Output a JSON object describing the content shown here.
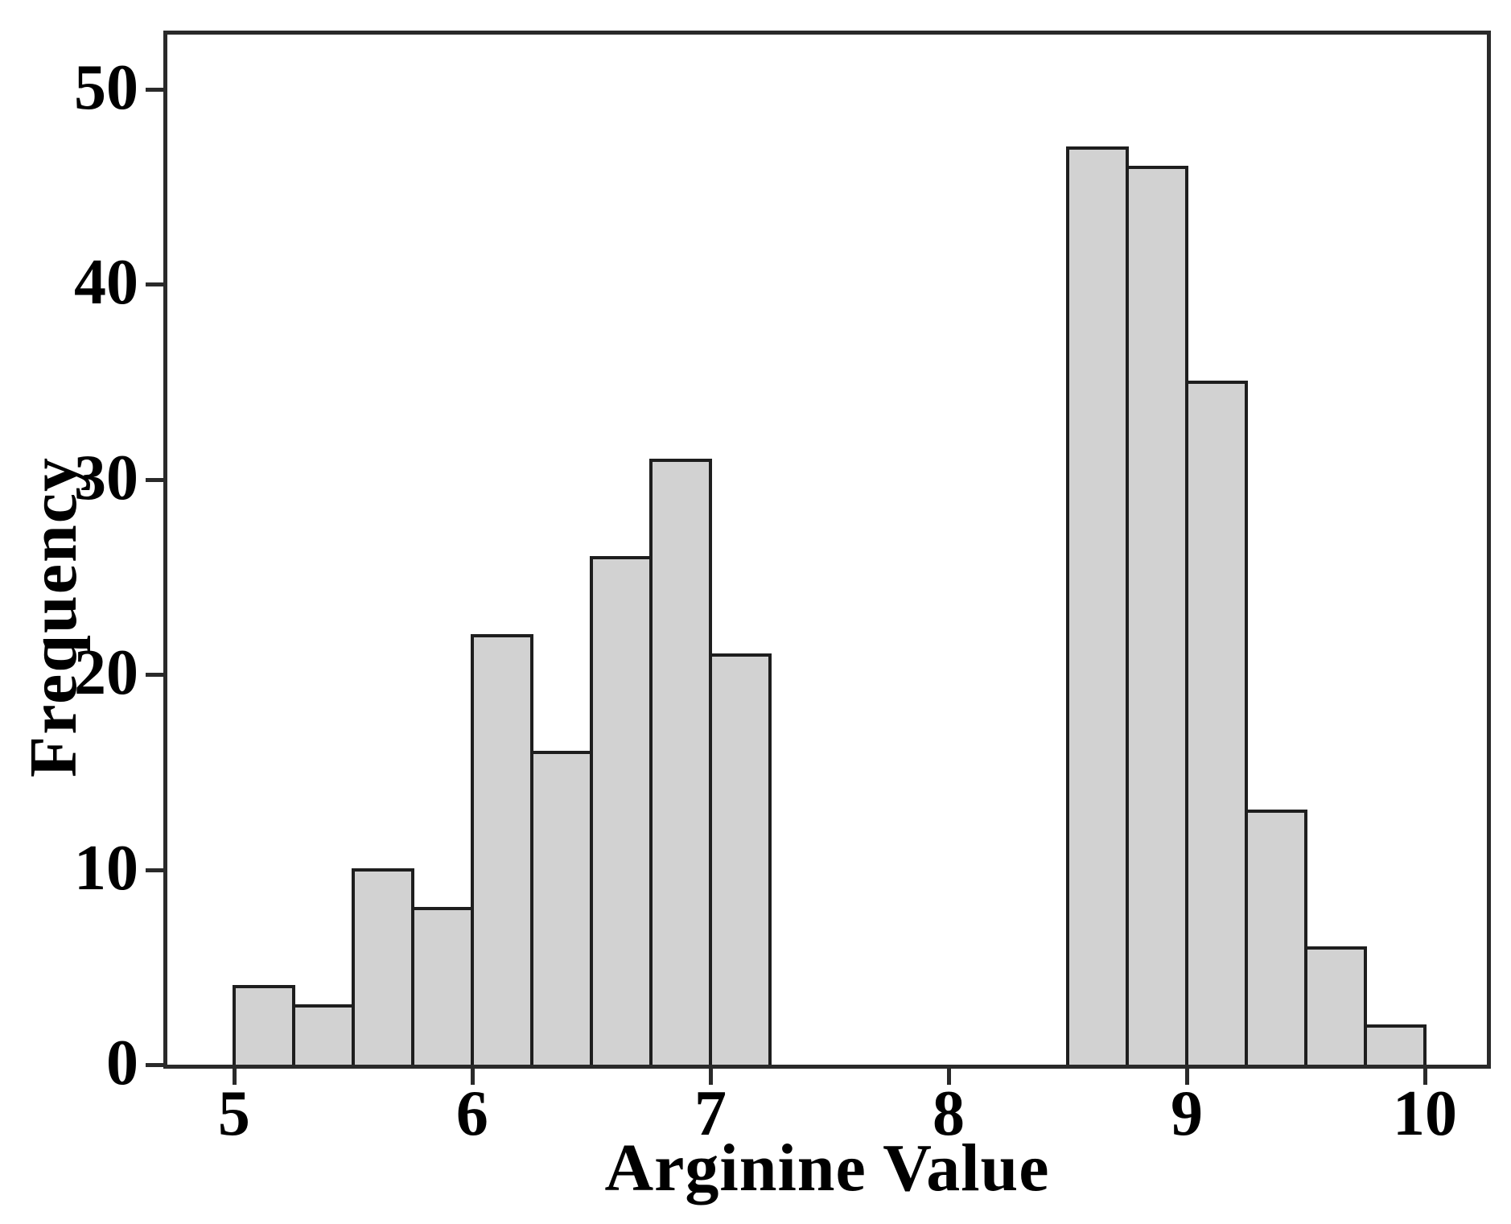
{
  "page": {
    "background": "#ffffff"
  },
  "chart_data": {
    "type": "bar",
    "subtype": "histogram",
    "title": "",
    "xlabel": "Arginine Value",
    "ylabel": "Frequency",
    "xlim": [
      4.72,
      10.26
    ],
    "ylim": [
      0,
      52.8
    ],
    "x_ticks": [
      "5",
      "6",
      "7",
      "8",
      "9",
      "10"
    ],
    "x_tick_values": [
      5,
      6,
      7,
      8,
      9,
      10
    ],
    "y_ticks": [
      "0",
      "10",
      "20",
      "30",
      "40",
      "50"
    ],
    "y_tick_values": [
      0,
      10,
      20,
      30,
      40,
      50
    ],
    "bin_width": 0.25,
    "bins": [
      {
        "x0": 5.0,
        "x1": 5.25,
        "frequency": 4
      },
      {
        "x0": 5.25,
        "x1": 5.5,
        "frequency": 3
      },
      {
        "x0": 5.5,
        "x1": 5.75,
        "frequency": 10
      },
      {
        "x0": 5.75,
        "x1": 6.0,
        "frequency": 8
      },
      {
        "x0": 6.0,
        "x1": 6.25,
        "frequency": 22
      },
      {
        "x0": 6.25,
        "x1": 6.5,
        "frequency": 16
      },
      {
        "x0": 6.5,
        "x1": 6.75,
        "frequency": 26
      },
      {
        "x0": 6.75,
        "x1": 7.0,
        "frequency": 31
      },
      {
        "x0": 7.0,
        "x1": 7.25,
        "frequency": 21
      },
      {
        "x0": 8.5,
        "x1": 8.75,
        "frequency": 47
      },
      {
        "x0": 8.75,
        "x1": 9.0,
        "frequency": 46
      },
      {
        "x0": 9.0,
        "x1": 9.25,
        "frequency": 35
      },
      {
        "x0": 9.25,
        "x1": 9.5,
        "frequency": 13
      },
      {
        "x0": 9.5,
        "x1": 9.75,
        "frequency": 6
      },
      {
        "x0": 9.75,
        "x1": 10.0,
        "frequency": 2
      }
    ],
    "grid": false,
    "legend": null,
    "colors": {
      "bar_fill": "#d2d2d2",
      "bar_border": "#1e1e1e",
      "axis": "#2a2a2a",
      "text": "#000000"
    }
  }
}
